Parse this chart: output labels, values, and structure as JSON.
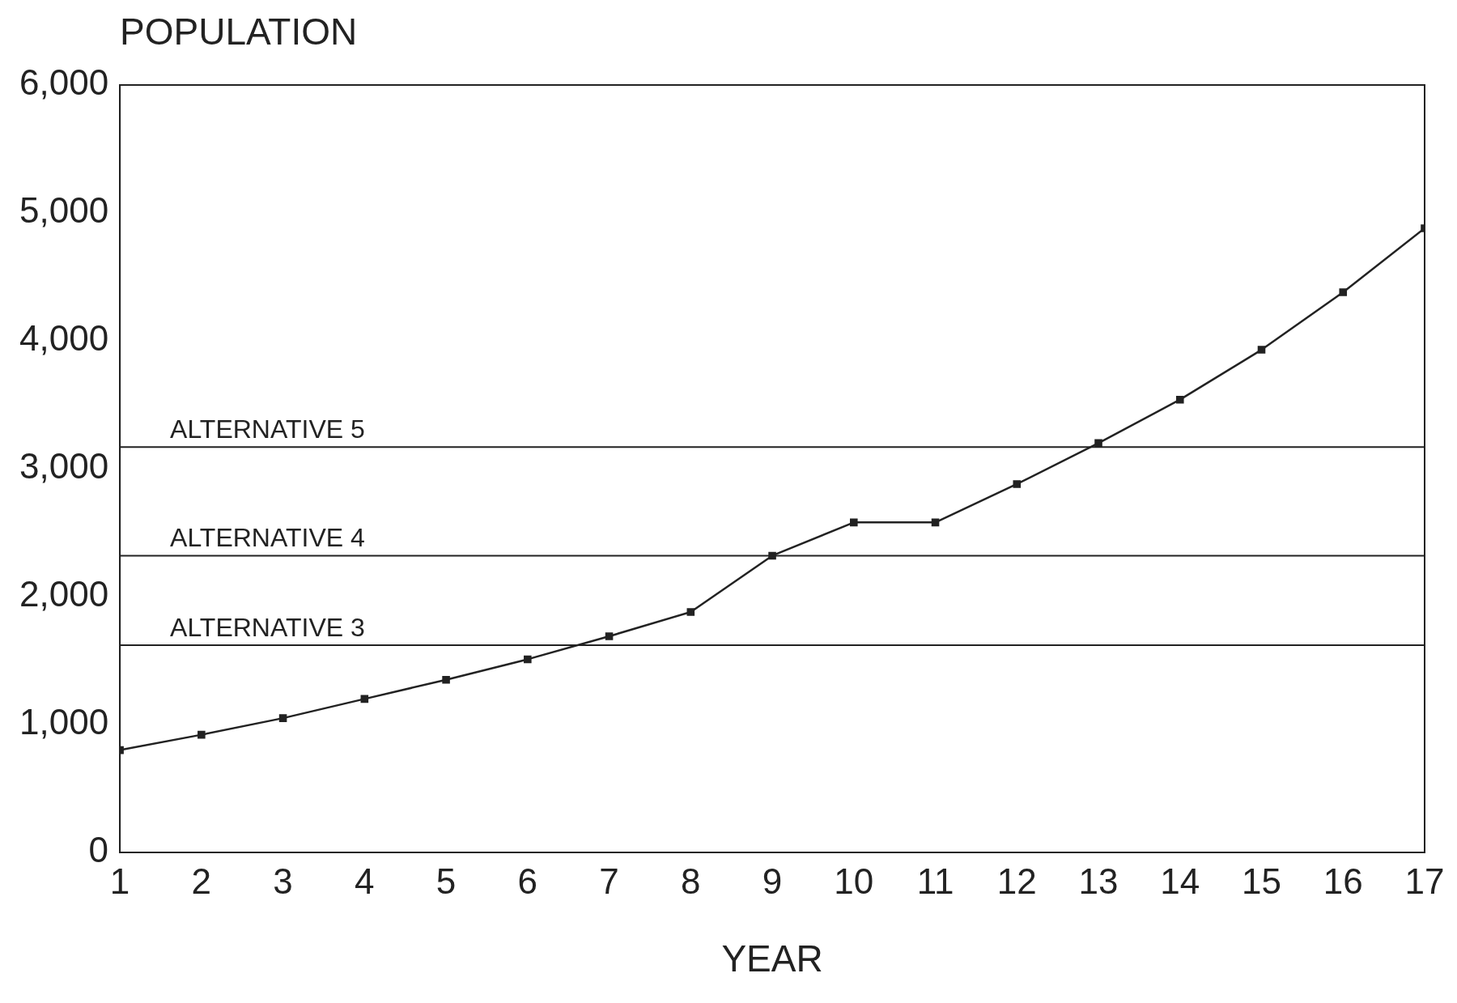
{
  "chart_data": {
    "type": "line",
    "ylabel": "POPULATION",
    "xlabel": "YEAR",
    "x": [
      1,
      2,
      3,
      4,
      5,
      6,
      7,
      8,
      9,
      10,
      11,
      12,
      13,
      14,
      15,
      16,
      17
    ],
    "series": [
      {
        "color": "#222222",
        "values": [
          800,
          920,
          1050,
          1200,
          1350,
          1510,
          1690,
          1880,
          2320,
          2580,
          2580,
          2880,
          3200,
          3540,
          3930,
          4380,
          4880
        ]
      }
    ],
    "xlim": [
      1,
      17
    ],
    "xticks": [
      1,
      2,
      3,
      4,
      5,
      6,
      7,
      8,
      9,
      10,
      11,
      12,
      13,
      14,
      15,
      16,
      17
    ],
    "ylim": [
      0,
      6000
    ],
    "yticks": [
      0,
      {
        "value": 1000,
        "label": "1,000"
      },
      {
        "value": 2000,
        "label": "2,000"
      },
      {
        "value": 3000,
        "label": "3,000"
      },
      {
        "value": 4000,
        "label": "4,000"
      },
      {
        "value": 5000,
        "label": "5,000"
      },
      {
        "value": 6000,
        "label": "6,000"
      }
    ],
    "ref_lines": [
      {
        "axis": "y",
        "value": 3170,
        "label": "ALTERNATIVE 5"
      },
      {
        "axis": "y",
        "value": 2320,
        "label": "ALTERNATIVE 4"
      },
      {
        "axis": "y",
        "value": 1620,
        "label": "ALTERNATIVE 3"
      }
    ],
    "grid": false,
    "legend": false,
    "marker": "square",
    "line_style": "solid"
  }
}
